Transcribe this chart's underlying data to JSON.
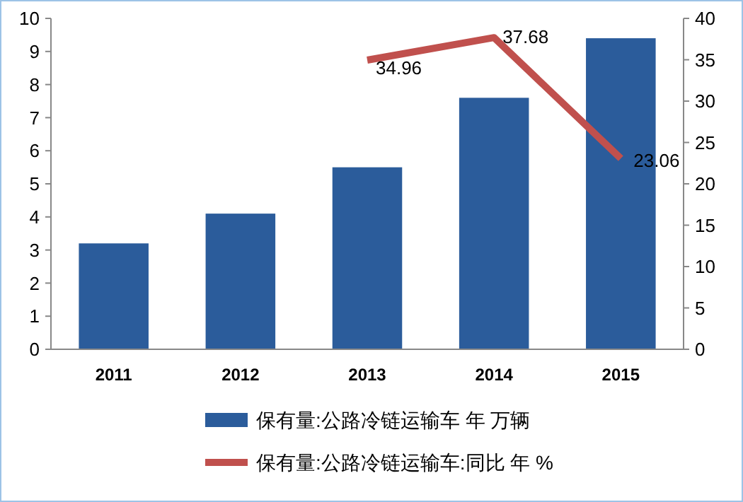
{
  "chart_data": {
    "type": "bar",
    "categories": [
      "2011",
      "2012",
      "2013",
      "2014",
      "2015"
    ],
    "series": [
      {
        "name": "保有量:公路冷链运输车 年 万辆",
        "color": "#2b5c9b",
        "values": [
          3.2,
          4.1,
          5.5,
          7.6,
          9.4
        ]
      },
      {
        "name": "保有量:公路冷链运输车:同比 年 %",
        "type": "line",
        "axis": "y2",
        "color": "#c0504d",
        "values": [
          null,
          null,
          34.96,
          37.68,
          23.06
        ],
        "value_labels": [
          null,
          null,
          "34.96",
          "37.68",
          "23.06"
        ]
      }
    ],
    "ylim": [
      0,
      10
    ],
    "yticks": [
      0,
      1,
      2,
      3,
      4,
      5,
      6,
      7,
      8,
      9,
      10
    ],
    "y2lim": [
      0,
      40
    ],
    "y2ticks": [
      0,
      5,
      10,
      15,
      20,
      25,
      30,
      35,
      40
    ],
    "legend": "bottom",
    "grid": false
  }
}
